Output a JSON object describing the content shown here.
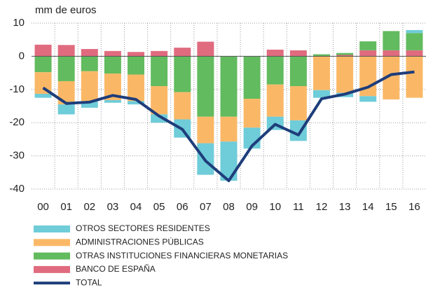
{
  "chart_data": {
    "type": "bar",
    "stacked": true,
    "y_label": "mm de euros",
    "categories": [
      "00",
      "01",
      "02",
      "03",
      "04",
      "05",
      "06",
      "07",
      "08",
      "09",
      "10",
      "11",
      "12",
      "13",
      "14",
      "15",
      "16"
    ],
    "series": [
      {
        "name": "OTROS SECTORES RESIDENTES",
        "color": "#6fccd9",
        "values": [
          -1.2,
          -3,
          -2,
          -0.8,
          -1,
          -2.5,
          -5.5,
          -9.5,
          -11.8,
          -6.3,
          -4,
          -6.2,
          -2.3,
          -1.3,
          -1.7,
          0,
          0.9
        ]
      },
      {
        "name": "ADMINISTRACIONES PÚBLICAS",
        "color": "#fab867",
        "values": [
          -6.5,
          -7,
          -9,
          -8,
          -8,
          -8.5,
          -8.2,
          -8,
          -7.5,
          -8.7,
          -9.7,
          -10.3,
          -10.2,
          -11,
          -12,
          -13,
          -12.5
        ]
      },
      {
        "name": "OTRAS INSTITUCIONES FINANCIERAS MONETARIAS",
        "color": "#62bb5e",
        "values": [
          -4.8,
          -7.5,
          -4.5,
          -5.2,
          -5.5,
          -9,
          -10.8,
          -18.2,
          -18.2,
          -12.8,
          -8.5,
          -9,
          0.6,
          0.6,
          2.7,
          5.8,
          5.2
        ]
      },
      {
        "name": "BANCO DE ESPAÑA",
        "color": "#e06b7f",
        "values": [
          3.5,
          3.4,
          2.2,
          1.6,
          1.3,
          1.6,
          2.6,
          4.4,
          0,
          0,
          2,
          1.8,
          0,
          0.4,
          1.8,
          1.8,
          1.8
        ]
      },
      {
        "name": "TOTAL",
        "type": "line",
        "color": "#1e3d7a",
        "values": [
          -9.5,
          -14.2,
          -13.8,
          -11.8,
          -13,
          -18,
          -22,
          -31.5,
          -37.5,
          -27,
          -20.5,
          -23.7,
          -12.8,
          -11.4,
          -9.3,
          -5.5,
          -4.7
        ]
      }
    ],
    "ylim": [
      -40,
      10
    ],
    "yticks": [
      10,
      0,
      -10,
      -20,
      -30,
      -40
    ],
    "grid": true
  }
}
